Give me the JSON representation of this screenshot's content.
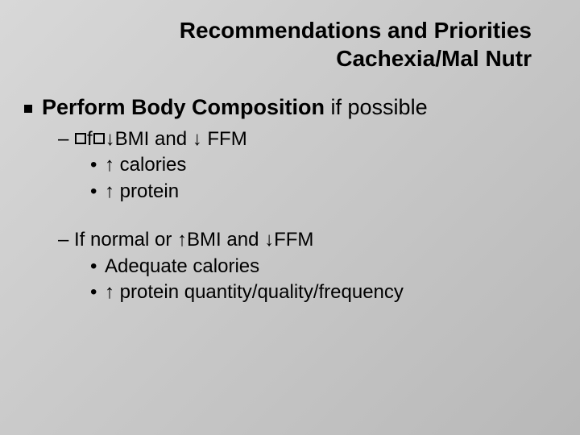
{
  "colors": {
    "text": "#000000",
    "bg_gradient_start": "#d8d8d8",
    "bg_gradient_mid": "#c8c8c8",
    "bg_gradient_end": "#b8b8b8"
  },
  "typography": {
    "title_fontsize": 28,
    "title_weight": "bold",
    "body_fontsize": 24,
    "sub_fontsize": 24,
    "family": "Verdana"
  },
  "title": {
    "line1": "Recommendations and Priorities",
    "line2": "Cachexia/Mal Nutr"
  },
  "main": {
    "bold": "Perform Body Composition",
    "rest": " if possible"
  },
  "group1": {
    "line": {
      "pre_box1": "",
      "mid": "f",
      "arrow1": "↓",
      "bmi": "BMI and ",
      "arrow2": "↓",
      "ffm": " FFM"
    },
    "b1": {
      "arrow": "↑",
      "text": "  calories"
    },
    "b2": {
      "arrow": "↑",
      "text": "  protein"
    }
  },
  "group2": {
    "line": {
      "pre": "If normal or ",
      "arrow1": "↑",
      "bmi": "BMI and ",
      "arrow2": "↓",
      "ffm": "FFM"
    },
    "b1": {
      "text": "Adequate calories"
    },
    "b2": {
      "arrow": "↑",
      "text": "  protein quantity/quality/frequency"
    }
  },
  "glyphs": {
    "up_arrow": "↑",
    "down_arrow": "↓",
    "bullet_square": "■",
    "dash": "–",
    "dot": "•"
  }
}
